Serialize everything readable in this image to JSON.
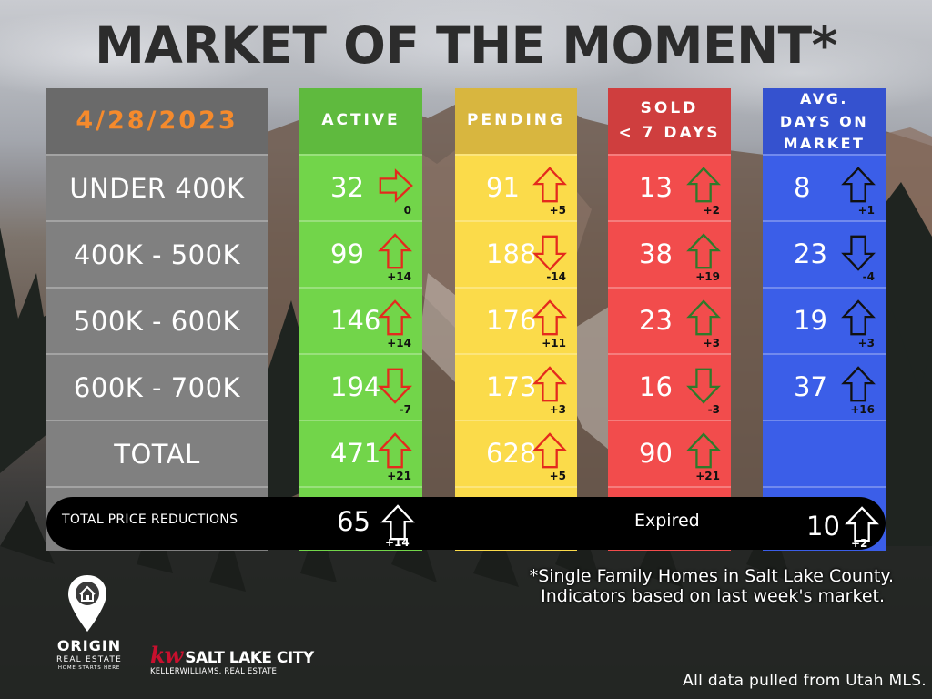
{
  "title": "MARKET OF THE MOMENT*",
  "date": "4/28/2023",
  "price_ranges": [
    "UNDER 400K",
    "400K - 500K",
    "500K - 600K",
    "600K - 700K",
    "TOTAL"
  ],
  "columns": {
    "active": {
      "header": "ACTIVE",
      "color": "#72d54a",
      "rows": [
        {
          "value": "32",
          "change": "0",
          "direction": "right"
        },
        {
          "value": "99",
          "change": "+14",
          "direction": "up"
        },
        {
          "value": "146",
          "change": "+14",
          "direction": "up"
        },
        {
          "value": "194",
          "change": "-7",
          "direction": "down"
        },
        {
          "value": "471",
          "change": "+21",
          "direction": "up"
        }
      ]
    },
    "pending": {
      "header": "PENDING",
      "color": "#fbdb4a",
      "rows": [
        {
          "value": "91",
          "change": "+5",
          "direction": "up"
        },
        {
          "value": "188",
          "change": "-14",
          "direction": "down"
        },
        {
          "value": "176",
          "change": "+11",
          "direction": "up"
        },
        {
          "value": "173",
          "change": "+3",
          "direction": "up"
        },
        {
          "value": "628",
          "change": "+5",
          "direction": "up"
        }
      ]
    },
    "sold": {
      "header_line1": "SOLD",
      "header_line2": "< 7 DAYS",
      "color": "#f24c4c",
      "rows": [
        {
          "value": "13",
          "change": "+2",
          "direction": "up"
        },
        {
          "value": "38",
          "change": "+19",
          "direction": "up"
        },
        {
          "value": "23",
          "change": "+3",
          "direction": "up"
        },
        {
          "value": "16",
          "change": "-3",
          "direction": "down"
        },
        {
          "value": "90",
          "change": "+21",
          "direction": "up"
        }
      ]
    },
    "dom": {
      "header_line1": "AVG.",
      "header_line2": "DAYS ON",
      "header_line3": "MARKET",
      "color": "#3b5ee8",
      "rows": [
        {
          "value": "8",
          "change": "+1",
          "direction": "up"
        },
        {
          "value": "23",
          "change": "-4",
          "direction": "down"
        },
        {
          "value": "19",
          "change": "+3",
          "direction": "up"
        },
        {
          "value": "37",
          "change": "+16",
          "direction": "up"
        }
      ]
    }
  },
  "price_reductions": {
    "label": "TOTAL PRICE REDUCTIONS",
    "value": "65",
    "change": "+14",
    "direction": "up"
  },
  "expired": {
    "label": "Expired",
    "value": "10",
    "change": "+2",
    "direction": "up"
  },
  "footnote_line1": "*Single Family Homes in Salt Lake County.",
  "footnote_line2": "Indicators based on last week's market.",
  "source": "All data pulled from Utah MLS.",
  "logos": {
    "origin_name": "ORIGIN",
    "origin_sub": "REAL ESTATE",
    "origin_tagline": "HOME STARTS HERE",
    "kw_mark": "kw",
    "kw_city": "SALT LAKE CITY",
    "kw_sub": "KELLERWILLIAMS. REAL ESTATE"
  },
  "icons": [
    "up-arrow-icon",
    "down-arrow-icon",
    "right-arrow-icon",
    "location-pin-icon",
    "house-icon"
  ]
}
